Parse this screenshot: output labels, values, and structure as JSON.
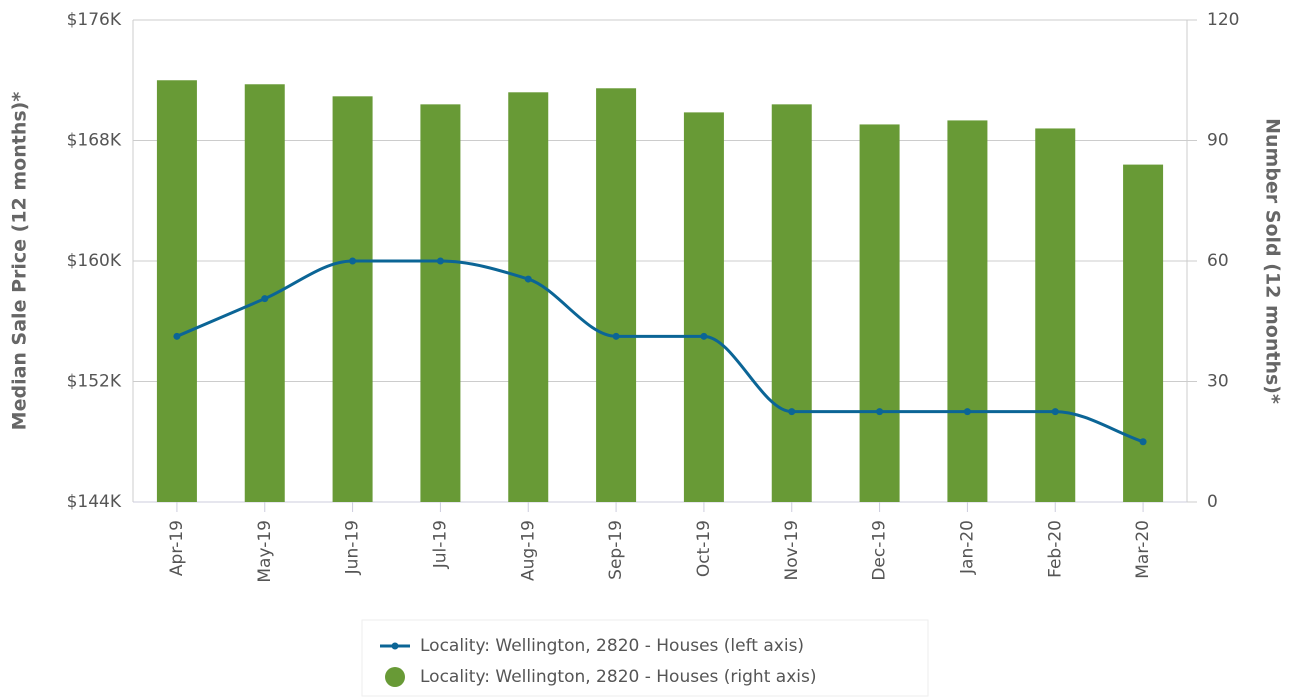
{
  "chart_data": {
    "type": "bar-line",
    "categories": [
      "Apr-19",
      "May-19",
      "Jun-19",
      "Jul-19",
      "Aug-19",
      "Sep-19",
      "Oct-19",
      "Nov-19",
      "Dec-19",
      "Jan-20",
      "Feb-20",
      "Mar-20"
    ],
    "y_label": "Median Sale Price (12 months)*",
    "y2_label": "Number Sold (12 months)*",
    "ylim": [
      144000,
      176000
    ],
    "yticks": [
      {
        "value": 144000,
        "label": "$144K"
      },
      {
        "value": 152000,
        "label": "$152K"
      },
      {
        "value": 160000,
        "label": "$160K"
      },
      {
        "value": 168000,
        "label": "$168K"
      },
      {
        "value": 176000,
        "label": "$176K"
      }
    ],
    "y2lim": [
      0,
      120
    ],
    "y2ticks": [
      0,
      30,
      60,
      90,
      120
    ],
    "grid": true,
    "legend": "bottom",
    "series": [
      {
        "name": "Locality: Wellington, 2820 - Houses (left axis)",
        "type": "line",
        "axis": "y",
        "color": "#0b6596",
        "values": [
          155000,
          157500,
          160000,
          160000,
          158800,
          155000,
          155000,
          150000,
          150000,
          150000,
          150000,
          148000
        ]
      },
      {
        "name": "Locality: Wellington, 2820 - Houses (right axis)",
        "type": "bar",
        "axis": "y2",
        "color": "#689a36",
        "values": [
          105,
          104,
          101,
          99,
          102,
          103,
          97,
          99,
          94,
          95,
          93,
          84
        ]
      }
    ]
  }
}
